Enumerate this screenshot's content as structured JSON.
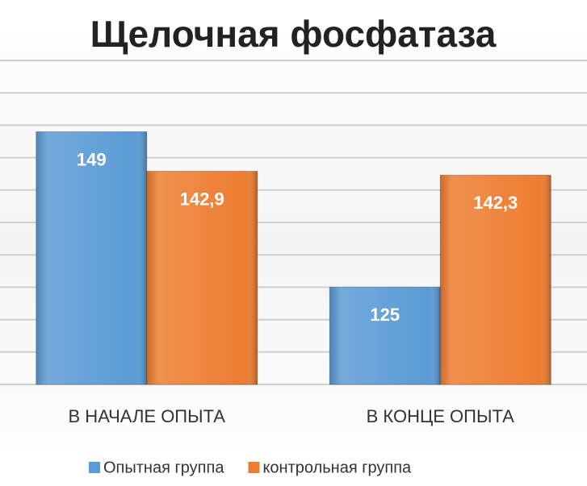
{
  "chart_data": {
    "type": "bar",
    "title": "Щелочная фосфатаза",
    "categories": [
      "В НАЧАЛЕ ОПЫТА",
      "В КОНЦЕ ОПЫТА"
    ],
    "series": [
      {
        "name": "Опытная группа",
        "color": "#5b9bd5",
        "values": [
          149,
          125
        ],
        "value_labels": [
          "149",
          "125"
        ]
      },
      {
        "name": "контрольная группа",
        "color": "#ed7d31",
        "values": [
          142.9,
          142.3
        ],
        "value_labels": [
          "142,9",
          "142,3"
        ]
      }
    ],
    "ylim": [
      110,
      160
    ],
    "yticks": [
      110,
      115,
      120,
      125,
      130,
      135,
      140,
      145,
      150,
      155,
      160
    ],
    "grid": true,
    "tick_labels": false,
    "legend": "bottom"
  }
}
